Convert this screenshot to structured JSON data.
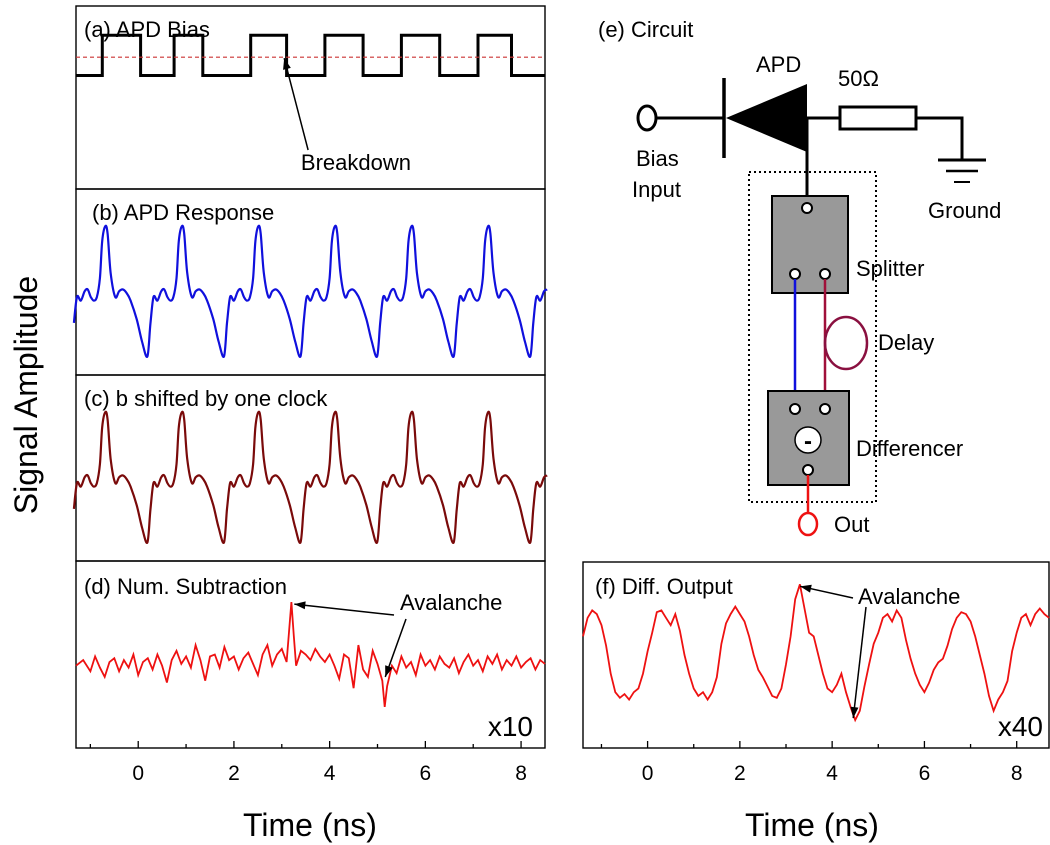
{
  "figure": {
    "y_axis_title": "Signal Amplitude",
    "x_axis_title_left": "Time (ns)",
    "x_axis_title_right": "Time (ns)"
  },
  "colors": {
    "bias": "#000000",
    "breakdown": "#cc3333",
    "response": "#1010dd",
    "shifted": "#7a0a0a",
    "subtraction": "#ee1111",
    "diff_output": "#ee1111",
    "splitter_fill": "#999999",
    "wire_blue": "#1010dd",
    "wire_red": "#a0103a",
    "delay_loop": "#8a1040",
    "out_terminal": "#ee1111"
  },
  "chart_data": [
    {
      "id": "a",
      "type": "line",
      "title": "(a) APD Bias",
      "xlim": [
        -1.3,
        8.5
      ],
      "ylim": [
        0,
        1
      ],
      "annotations": [
        {
          "text": "Breakdown",
          "x": 3.4,
          "y": 0.64
        }
      ],
      "series": [
        {
          "name": "",
          "x": [
            -1.3,
            -0.75,
            -0.75,
            0.05,
            0.05,
            0.75,
            0.75,
            1.35,
            1.35,
            2.35,
            2.35,
            3.1,
            3.1,
            3.9,
            3.9,
            4.7,
            4.7,
            5.5,
            5.5,
            6.3,
            6.3,
            7.1,
            7.1,
            7.8,
            7.8,
            8.5
          ],
          "y": [
            0.62,
            0.62,
            0.84,
            0.84,
            0.62,
            0.62,
            0.84,
            0.84,
            0.62,
            0.62,
            0.84,
            0.84,
            0.62,
            0.62,
            0.84,
            0.84,
            0.62,
            0.62,
            0.84,
            0.84,
            0.62,
            0.62,
            0.84,
            0.84,
            0.62,
            0.62
          ]
        },
        {
          "name": "",
          "x": [
            -1.3,
            8.5
          ],
          "y": [
            0.72,
            0.72
          ],
          "style": "dashed"
        }
      ]
    },
    {
      "id": "b",
      "type": "line",
      "title": "(b) APD Response",
      "xlim": [
        -1.3,
        8.5
      ],
      "ylim": [
        0,
        1
      ],
      "period": 1.6,
      "phase": -0.8,
      "profile_t": [
        0,
        0.03,
        0.07,
        0.1,
        0.14,
        0.2,
        0.25,
        0.3,
        0.35,
        0.4,
        0.48,
        0.55,
        0.62,
        0.66,
        0.7,
        0.75,
        0.8,
        0.84,
        0.88,
        0.92,
        0.96,
        1.0
      ],
      "profile_y": [
        0.52,
        0.72,
        0.8,
        0.76,
        0.55,
        0.42,
        0.45,
        0.46,
        0.44,
        0.4,
        0.3,
        0.18,
        0.1,
        0.28,
        0.42,
        0.4,
        0.45,
        0.46,
        0.42,
        0.4,
        0.42,
        0.52
      ],
      "series": [
        {
          "name": ""
        }
      ]
    },
    {
      "id": "c",
      "type": "line",
      "title": "(c) b shifted by one clock",
      "xlim": [
        -1.3,
        8.5
      ],
      "ylim": [
        0,
        1
      ],
      "period": 1.6,
      "phase": -0.8,
      "profile_t": [
        0,
        0.03,
        0.07,
        0.1,
        0.14,
        0.2,
        0.25,
        0.3,
        0.35,
        0.4,
        0.48,
        0.55,
        0.62,
        0.66,
        0.7,
        0.75,
        0.8,
        0.84,
        0.88,
        0.92,
        0.96,
        1.0
      ],
      "profile_y": [
        0.52,
        0.72,
        0.8,
        0.76,
        0.55,
        0.42,
        0.45,
        0.46,
        0.44,
        0.4,
        0.3,
        0.18,
        0.1,
        0.28,
        0.42,
        0.4,
        0.45,
        0.46,
        0.42,
        0.4,
        0.42,
        0.52
      ],
      "series": [
        {
          "name": ""
        }
      ]
    },
    {
      "id": "d",
      "type": "line",
      "title": "(d) Num. Subtraction",
      "xlim": [
        -1.3,
        8.5
      ],
      "ylim": [
        0,
        1
      ],
      "scale_label": "x10",
      "annotations": [
        {
          "text": "Avalanche",
          "x": 3.2
        },
        {
          "text": "Avalanche",
          "x": 5.1
        }
      ],
      "series": [
        {
          "name": "",
          "x": [
            -1.3,
            -1.15,
            -1.0,
            -0.9,
            -0.8,
            -0.7,
            -0.6,
            -0.5,
            -0.4,
            -0.3,
            -0.2,
            -0.1,
            0.0,
            0.1,
            0.2,
            0.3,
            0.4,
            0.5,
            0.6,
            0.7,
            0.8,
            0.9,
            1.0,
            1.1,
            1.2,
            1.3,
            1.4,
            1.5,
            1.6,
            1.7,
            1.8,
            1.9,
            2.0,
            2.1,
            2.2,
            2.3,
            2.4,
            2.5,
            2.6,
            2.7,
            2.8,
            2.9,
            3.0,
            3.1,
            3.15,
            3.2,
            3.25,
            3.3,
            3.4,
            3.5,
            3.6,
            3.7,
            3.8,
            3.9,
            4.0,
            4.1,
            4.2,
            4.3,
            4.4,
            4.5,
            4.6,
            4.7,
            4.8,
            4.9,
            5.0,
            5.1,
            5.15,
            5.2,
            5.3,
            5.4,
            5.5,
            5.6,
            5.7,
            5.8,
            5.9,
            6.0,
            6.1,
            6.2,
            6.3,
            6.4,
            6.5,
            6.6,
            6.7,
            6.8,
            6.9,
            7.0,
            7.1,
            7.2,
            7.3,
            7.4,
            7.5,
            7.6,
            7.7,
            7.8,
            7.9,
            8.0,
            8.1,
            8.2,
            8.3,
            8.4,
            8.5
          ],
          "y": [
            0.44,
            0.47,
            0.41,
            0.49,
            0.43,
            0.38,
            0.46,
            0.48,
            0.41,
            0.47,
            0.43,
            0.5,
            0.39,
            0.46,
            0.48,
            0.42,
            0.5,
            0.44,
            0.35,
            0.47,
            0.52,
            0.45,
            0.49,
            0.43,
            0.55,
            0.47,
            0.36,
            0.49,
            0.5,
            0.43,
            0.54,
            0.47,
            0.49,
            0.42,
            0.48,
            0.51,
            0.45,
            0.39,
            0.5,
            0.55,
            0.44,
            0.5,
            0.53,
            0.46,
            0.62,
            0.78,
            0.6,
            0.44,
            0.52,
            0.5,
            0.47,
            0.53,
            0.49,
            0.46,
            0.5,
            0.44,
            0.37,
            0.5,
            0.48,
            0.32,
            0.55,
            0.42,
            0.38,
            0.52,
            0.45,
            0.36,
            0.22,
            0.33,
            0.44,
            0.4,
            0.49,
            0.43,
            0.46,
            0.39,
            0.5,
            0.44,
            0.47,
            0.42,
            0.49,
            0.45,
            0.43,
            0.48,
            0.4,
            0.46,
            0.5,
            0.44,
            0.47,
            0.41,
            0.49,
            0.45,
            0.5,
            0.42,
            0.47,
            0.44,
            0.49,
            0.43,
            0.46,
            0.48,
            0.42,
            0.47,
            0.45
          ]
        }
      ]
    },
    {
      "id": "f",
      "type": "line",
      "title": "(f) Diff. Output",
      "xlim": [
        -1.4,
        8.7
      ],
      "ylim": [
        0,
        1
      ],
      "scale_label": "x40",
      "annotations": [
        {
          "text": "Avalanche",
          "x": 3.2
        },
        {
          "text": "Avalanche",
          "x": 4.5
        }
      ],
      "series": [
        {
          "name": "",
          "x": [
            -1.4,
            -1.3,
            -1.2,
            -1.1,
            -1.0,
            -0.9,
            -0.8,
            -0.7,
            -0.6,
            -0.5,
            -0.4,
            -0.3,
            -0.2,
            -0.1,
            0.0,
            0.1,
            0.2,
            0.3,
            0.4,
            0.5,
            0.6,
            0.7,
            0.8,
            0.9,
            1.0,
            1.1,
            1.2,
            1.3,
            1.4,
            1.5,
            1.6,
            1.7,
            1.8,
            1.9,
            2.0,
            2.1,
            2.2,
            2.3,
            2.4,
            2.5,
            2.6,
            2.7,
            2.8,
            2.9,
            3.0,
            3.1,
            3.2,
            3.3,
            3.4,
            3.5,
            3.6,
            3.7,
            3.8,
            3.9,
            4.0,
            4.1,
            4.2,
            4.3,
            4.4,
            4.5,
            4.6,
            4.7,
            4.8,
            4.9,
            5.0,
            5.1,
            5.2,
            5.3,
            5.4,
            5.5,
            5.6,
            5.7,
            5.8,
            5.9,
            6.0,
            6.1,
            6.2,
            6.3,
            6.4,
            6.5,
            6.6,
            6.7,
            6.8,
            6.9,
            7.0,
            7.1,
            7.2,
            7.3,
            7.4,
            7.5,
            7.6,
            7.7,
            7.8,
            7.9,
            8.0,
            8.1,
            8.2,
            8.3,
            8.4,
            8.5,
            8.6,
            8.7
          ],
          "y": [
            0.6,
            0.7,
            0.74,
            0.72,
            0.66,
            0.55,
            0.4,
            0.3,
            0.27,
            0.29,
            0.26,
            0.3,
            0.32,
            0.4,
            0.52,
            0.62,
            0.73,
            0.74,
            0.7,
            0.66,
            0.72,
            0.63,
            0.5,
            0.4,
            0.32,
            0.28,
            0.3,
            0.26,
            0.3,
            0.38,
            0.56,
            0.67,
            0.72,
            0.76,
            0.72,
            0.68,
            0.6,
            0.5,
            0.42,
            0.38,
            0.33,
            0.28,
            0.27,
            0.32,
            0.45,
            0.6,
            0.8,
            0.88,
            0.75,
            0.62,
            0.6,
            0.5,
            0.4,
            0.32,
            0.3,
            0.34,
            0.4,
            0.3,
            0.22,
            0.15,
            0.2,
            0.33,
            0.45,
            0.56,
            0.62,
            0.7,
            0.72,
            0.68,
            0.74,
            0.7,
            0.58,
            0.48,
            0.4,
            0.34,
            0.3,
            0.35,
            0.42,
            0.46,
            0.48,
            0.55,
            0.64,
            0.7,
            0.73,
            0.72,
            0.68,
            0.6,
            0.5,
            0.4,
            0.28,
            0.2,
            0.26,
            0.3,
            0.36,
            0.52,
            0.62,
            0.7,
            0.72,
            0.66,
            0.72,
            0.75,
            0.72,
            0.7
          ]
        }
      ]
    }
  ],
  "x_ticks_left": {
    "major": [
      0,
      2,
      4,
      6,
      8
    ],
    "labels": [
      "0",
      "2",
      "4",
      "6",
      "8"
    ]
  },
  "x_ticks_right": {
    "major": [
      0,
      2,
      4,
      6,
      8
    ],
    "labels": [
      "0",
      "2",
      "4",
      "6",
      "8"
    ]
  },
  "circuit": {
    "title": "(e) Circuit",
    "apd_label": "APD",
    "resistor_label": "50Ω",
    "bias_label_1": "Bias",
    "bias_label_2": "Input",
    "ground_label": "Ground",
    "splitter_label": "Splitter",
    "delay_label": "Delay",
    "differencer_label": "Differencer",
    "minus_label": "-",
    "out_label": "Out"
  }
}
